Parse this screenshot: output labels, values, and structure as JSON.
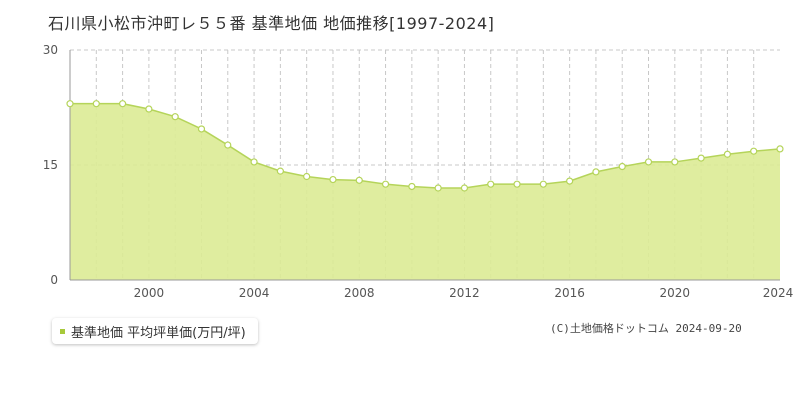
{
  "title": "石川県小松市沖町レ５５番 基準地価 地価推移[1997-2024]",
  "legend": {
    "label": "基準地価 平均坪単価(万円/坪)"
  },
  "copyright": "(C)土地価格ドットコム 2024-09-20",
  "colors": {
    "area_fill": "#dbeb95",
    "line": "#b5d45a",
    "marker": "#a7c93a",
    "grid": "#c8c8c8"
  },
  "chart_data": {
    "type": "area",
    "title": "",
    "xlabel": "",
    "ylabel": "",
    "xlim": [
      1997,
      2024
    ],
    "ylim": [
      0,
      30
    ],
    "y_ticks": [
      "0",
      "15",
      "30"
    ],
    "x_ticks": [
      "2000",
      "2004",
      "2008",
      "2012",
      "2016",
      "2020",
      "2024"
    ],
    "grid": true,
    "legend_position": "bottom-left",
    "series": [
      {
        "name": "基準地価 平均坪単価(万円/坪)",
        "x": [
          1997,
          1998,
          1999,
          2000,
          2001,
          2002,
          2003,
          2004,
          2005,
          2006,
          2007,
          2008,
          2009,
          2010,
          2011,
          2012,
          2013,
          2014,
          2015,
          2016,
          2017,
          2018,
          2019,
          2020,
          2021,
          2022,
          2023,
          2024
        ],
        "y": [
          23.0,
          23.0,
          23.0,
          22.3,
          21.3,
          19.7,
          17.6,
          15.4,
          14.2,
          13.5,
          13.1,
          13.0,
          12.5,
          12.2,
          12.0,
          12.0,
          12.5,
          12.5,
          12.5,
          12.9,
          14.1,
          14.8,
          15.4,
          15.4,
          15.9,
          16.4,
          16.8,
          17.1
        ]
      }
    ]
  }
}
